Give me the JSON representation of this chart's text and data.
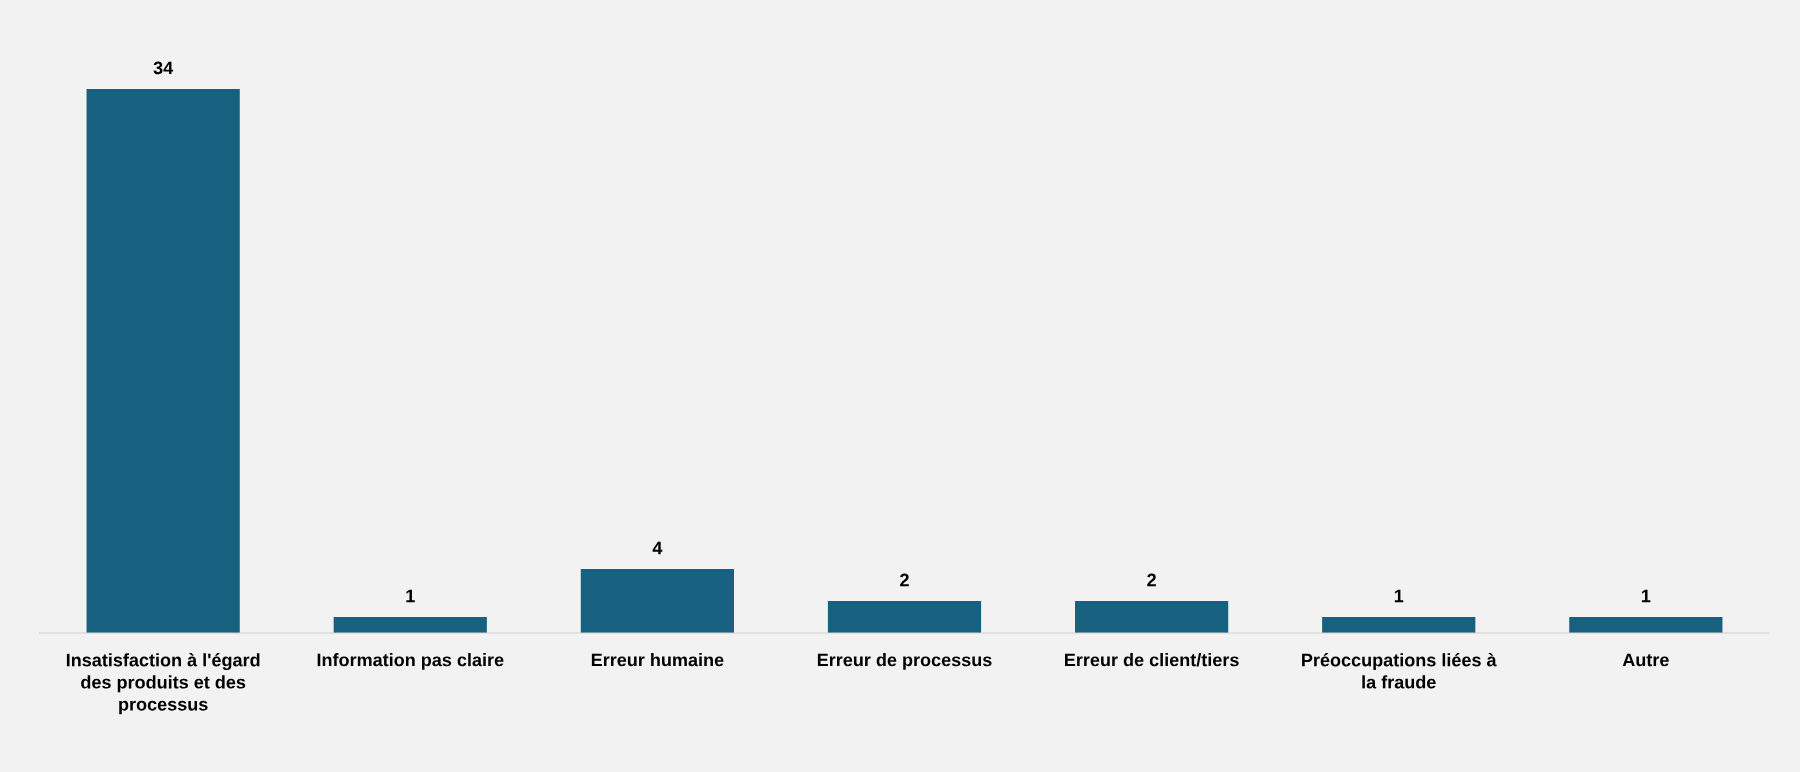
{
  "chart_data": {
    "type": "bar",
    "categories": [
      "Insatisfaction à l'égard des produits et des processus",
      "Information pas claire",
      "Erreur humaine",
      "Erreur de processus",
      "Erreur de client/tiers",
      "Préoccupations liées à la fraude",
      "Autre"
    ],
    "values": [
      34,
      1,
      4,
      2,
      2,
      1,
      1
    ],
    "color": "#17607f",
    "tick_labels": "x",
    "data_labels": true
  }
}
